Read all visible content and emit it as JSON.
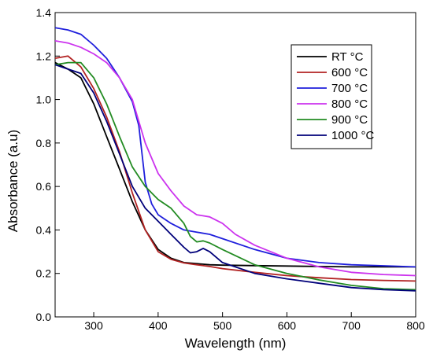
{
  "chart_data": {
    "type": "line",
    "xlabel": "Wavelength (nm)",
    "ylabel": "Absorbance (a.u)",
    "xlim": [
      240,
      800
    ],
    "ylim": [
      0.0,
      1.4
    ],
    "x_ticks": [
      "300",
      "400",
      "500",
      "600",
      "700",
      "800"
    ],
    "y_ticks": [
      "0.0",
      "0.2",
      "0.4",
      "0.6",
      "0.8",
      "1.0",
      "1.2",
      "1.4"
    ],
    "grid": false,
    "legend_position": "top-right",
    "series": [
      {
        "name": "RT °C",
        "color": "#000000",
        "points": [
          [
            240,
            1.17
          ],
          [
            260,
            1.14
          ],
          [
            280,
            1.1
          ],
          [
            300,
            0.98
          ],
          [
            320,
            0.83
          ],
          [
            340,
            0.68
          ],
          [
            360,
            0.53
          ],
          [
            380,
            0.4
          ],
          [
            400,
            0.31
          ],
          [
            420,
            0.27
          ],
          [
            440,
            0.25
          ],
          [
            460,
            0.245
          ],
          [
            480,
            0.24
          ],
          [
            500,
            0.238
          ],
          [
            550,
            0.236
          ],
          [
            600,
            0.234
          ],
          [
            650,
            0.232
          ],
          [
            700,
            0.23
          ],
          [
            750,
            0.23
          ],
          [
            800,
            0.23
          ]
        ]
      },
      {
        "name": "600 °C",
        "color": "#b22222",
        "points": [
          [
            240,
            1.19
          ],
          [
            260,
            1.2
          ],
          [
            280,
            1.15
          ],
          [
            300,
            1.05
          ],
          [
            320,
            0.92
          ],
          [
            340,
            0.76
          ],
          [
            360,
            0.57
          ],
          [
            380,
            0.4
          ],
          [
            400,
            0.3
          ],
          [
            420,
            0.265
          ],
          [
            440,
            0.248
          ],
          [
            460,
            0.24
          ],
          [
            480,
            0.232
          ],
          [
            500,
            0.222
          ],
          [
            550,
            0.205
          ],
          [
            600,
            0.19
          ],
          [
            650,
            0.18
          ],
          [
            700,
            0.172
          ],
          [
            750,
            0.168
          ],
          [
            800,
            0.165
          ]
        ]
      },
      {
        "name": "700 °C",
        "color": "#1f1fdc",
        "points": [
          [
            240,
            1.33
          ],
          [
            260,
            1.32
          ],
          [
            280,
            1.3
          ],
          [
            300,
            1.25
          ],
          [
            320,
            1.19
          ],
          [
            340,
            1.1
          ],
          [
            360,
            0.99
          ],
          [
            370,
            0.88
          ],
          [
            380,
            0.62
          ],
          [
            390,
            0.52
          ],
          [
            400,
            0.47
          ],
          [
            420,
            0.43
          ],
          [
            440,
            0.4
          ],
          [
            460,
            0.39
          ],
          [
            480,
            0.38
          ],
          [
            500,
            0.36
          ],
          [
            550,
            0.31
          ],
          [
            600,
            0.27
          ],
          [
            650,
            0.25
          ],
          [
            700,
            0.24
          ],
          [
            750,
            0.235
          ],
          [
            800,
            0.23
          ]
        ]
      },
      {
        "name": "800 °C",
        "color": "#cc33ee",
        "points": [
          [
            240,
            1.27
          ],
          [
            260,
            1.26
          ],
          [
            280,
            1.24
          ],
          [
            300,
            1.21
          ],
          [
            320,
            1.17
          ],
          [
            340,
            1.1
          ],
          [
            360,
            1.0
          ],
          [
            370,
            0.9
          ],
          [
            380,
            0.8
          ],
          [
            400,
            0.66
          ],
          [
            420,
            0.58
          ],
          [
            440,
            0.51
          ],
          [
            460,
            0.47
          ],
          [
            480,
            0.46
          ],
          [
            500,
            0.43
          ],
          [
            520,
            0.38
          ],
          [
            550,
            0.33
          ],
          [
            600,
            0.27
          ],
          [
            650,
            0.23
          ],
          [
            700,
            0.205
          ],
          [
            750,
            0.195
          ],
          [
            800,
            0.19
          ]
        ]
      },
      {
        "name": "900 °C",
        "color": "#228b22",
        "points": [
          [
            240,
            1.16
          ],
          [
            260,
            1.17
          ],
          [
            280,
            1.17
          ],
          [
            300,
            1.1
          ],
          [
            320,
            0.98
          ],
          [
            340,
            0.83
          ],
          [
            360,
            0.69
          ],
          [
            380,
            0.6
          ],
          [
            400,
            0.54
          ],
          [
            420,
            0.5
          ],
          [
            440,
            0.43
          ],
          [
            450,
            0.37
          ],
          [
            460,
            0.345
          ],
          [
            470,
            0.35
          ],
          [
            480,
            0.34
          ],
          [
            500,
            0.31
          ],
          [
            550,
            0.24
          ],
          [
            600,
            0.2
          ],
          [
            650,
            0.17
          ],
          [
            700,
            0.145
          ],
          [
            750,
            0.13
          ],
          [
            800,
            0.125
          ]
        ]
      },
      {
        "name": "1000 °C",
        "color": "#00007a",
        "points": [
          [
            240,
            1.16
          ],
          [
            260,
            1.14
          ],
          [
            280,
            1.12
          ],
          [
            300,
            1.03
          ],
          [
            320,
            0.9
          ],
          [
            340,
            0.75
          ],
          [
            360,
            0.6
          ],
          [
            380,
            0.5
          ],
          [
            400,
            0.44
          ],
          [
            420,
            0.38
          ],
          [
            440,
            0.32
          ],
          [
            450,
            0.295
          ],
          [
            460,
            0.3
          ],
          [
            470,
            0.315
          ],
          [
            480,
            0.3
          ],
          [
            500,
            0.25
          ],
          [
            550,
            0.2
          ],
          [
            600,
            0.175
          ],
          [
            650,
            0.155
          ],
          [
            700,
            0.135
          ],
          [
            750,
            0.125
          ],
          [
            800,
            0.12
          ]
        ]
      }
    ]
  }
}
